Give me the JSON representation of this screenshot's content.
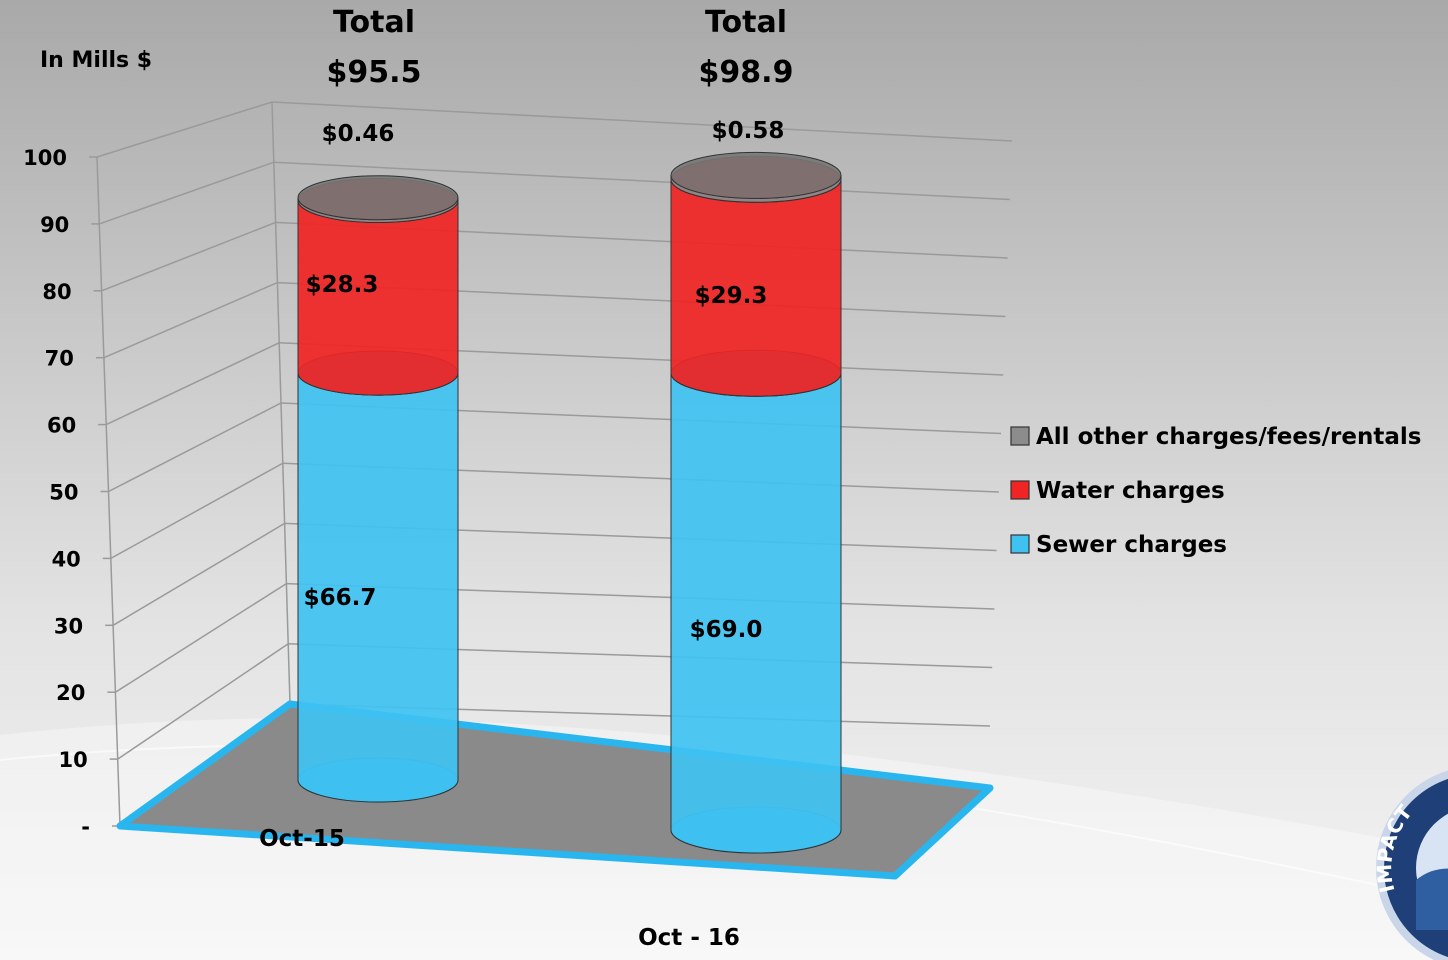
{
  "chart_data": {
    "type": "bar",
    "stacked": true,
    "three_d": true,
    "unit_label": "In Mills $",
    "categories": [
      "Oct-15",
      "Oct - 16"
    ],
    "series": [
      {
        "name": "Sewer charges",
        "color": "#3fc2f2",
        "values": [
          66.7,
          69.0
        ],
        "labels": [
          "$66.7",
          "$69.0"
        ]
      },
      {
        "name": "Water charges",
        "color": "#f02424",
        "values": [
          28.3,
          29.3
        ],
        "labels": [
          "$28.3",
          "$29.3"
        ]
      },
      {
        "name": "All other charges/fees/rentals",
        "color": "#8c8c8c",
        "values": [
          0.46,
          0.58
        ],
        "labels": [
          "$0.46",
          "$0.58"
        ]
      }
    ],
    "totals": [
      {
        "heading": "Total",
        "value": "$95.5"
      },
      {
        "heading": "Total",
        "value": "$98.9"
      }
    ],
    "yticks": [
      "-",
      "10",
      "20",
      "30",
      "40",
      "50",
      "60",
      "70",
      "80",
      "90",
      "100"
    ],
    "ylim": [
      0,
      100
    ],
    "grid": true,
    "legend_position": "right"
  },
  "legend_order": [
    2,
    1,
    0
  ],
  "logo": {
    "text": "IMPACT"
  }
}
